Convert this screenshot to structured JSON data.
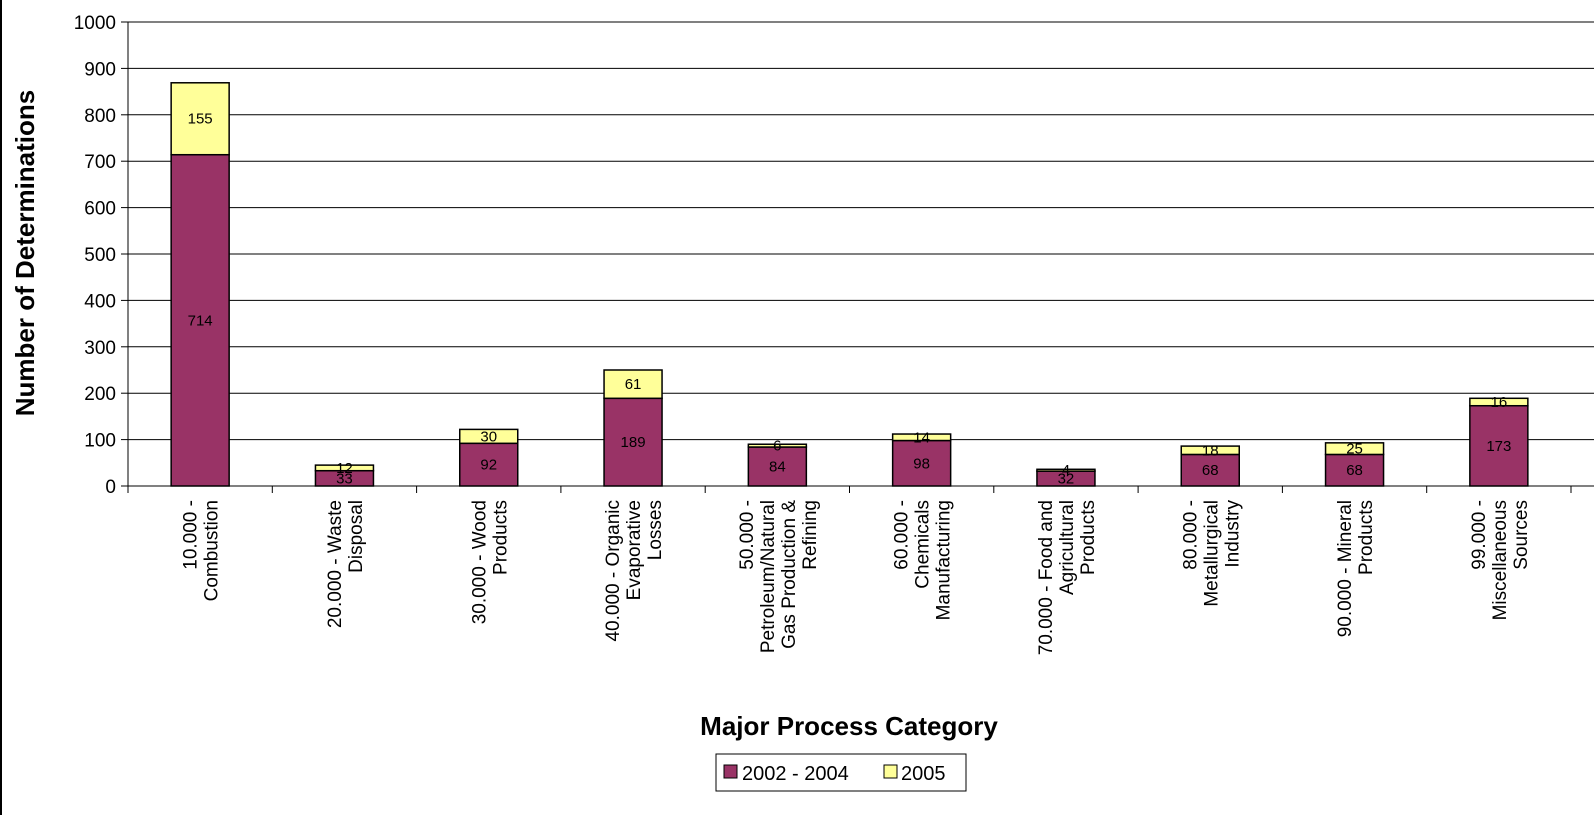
{
  "chart_data": {
    "type": "bar",
    "stacked": true,
    "title": "",
    "xlabel": "Major Process Category",
    "ylabel": "Number of Determinations",
    "ylim": [
      0,
      1000
    ],
    "yticks": [
      "0",
      "100",
      "200",
      "300",
      "400",
      "500",
      "600",
      "700",
      "800",
      "900",
      "1000"
    ],
    "grid": true,
    "legend_position": "bottom",
    "categories": [
      [
        "10.000 -",
        "Combustion"
      ],
      [
        "20.000 - Waste",
        "Disposal"
      ],
      [
        "30.000 - Wood",
        "Products"
      ],
      [
        "40.000 - Organic",
        "Evaporative",
        "Losses"
      ],
      [
        "50.000 -",
        "Petroleum/Natural",
        "Gas Production &",
        "Refining"
      ],
      [
        "60.000 -",
        "Chemicals",
        "Manufacturing"
      ],
      [
        "70.000 - Food and",
        "Agricultural",
        "Products"
      ],
      [
        "80.000 -",
        "Metallurgical",
        "Industry"
      ],
      [
        "90.000 - Mineral",
        "Products"
      ],
      [
        "99.000 -",
        "Miscellaneous",
        "Sources"
      ]
    ],
    "series": [
      {
        "name": "2002 - 2004",
        "color": "#993366",
        "values": [
          714,
          33,
          92,
          189,
          84,
          98,
          32,
          68,
          68,
          173
        ]
      },
      {
        "name": "2005",
        "color": "#ffff99",
        "values": [
          155,
          12,
          30,
          61,
          6,
          14,
          4,
          18,
          25,
          16
        ]
      }
    ]
  }
}
